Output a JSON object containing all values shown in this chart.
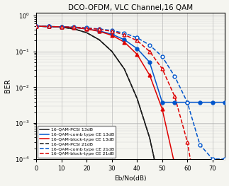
{
  "title": "DCO-OFDM, VLC Channel,16 QAM",
  "xlabel": "Eb/No(dB)",
  "ylabel": "BER",
  "xlim": [
    0,
    75
  ],
  "snr_points": [
    0,
    5,
    10,
    15,
    20,
    25,
    30,
    35,
    40,
    45,
    50,
    55,
    60,
    65,
    70,
    75
  ],
  "pcsi_13": [
    0.5,
    0.49,
    0.47,
    0.42,
    0.33,
    0.21,
    0.1,
    0.032,
    0.005,
    0.0004,
    1e-05,
    1e-06,
    1e-07,
    1e-07,
    1e-07,
    1e-07
  ],
  "comb_13": [
    0.5,
    0.49,
    0.48,
    0.46,
    0.42,
    0.37,
    0.3,
    0.21,
    0.12,
    0.05,
    0.0038,
    0.0038,
    0.0038,
    0.0038,
    0.0038,
    0.0038
  ],
  "block_13": [
    0.5,
    0.49,
    0.48,
    0.46,
    0.42,
    0.36,
    0.28,
    0.18,
    0.083,
    0.022,
    0.0025,
    7e-05,
    1e-07,
    1e-07,
    1e-07,
    1e-07
  ],
  "pcsi_21": [
    0.5,
    0.49,
    0.47,
    0.42,
    0.33,
    0.21,
    0.1,
    0.032,
    0.005,
    0.0004,
    1e-05,
    1e-06,
    1e-07,
    1e-07,
    1e-07,
    1e-07
  ],
  "comb_21": [
    0.5,
    0.49,
    0.48,
    0.47,
    0.45,
    0.42,
    0.38,
    0.32,
    0.24,
    0.15,
    0.072,
    0.02,
    0.0038,
    0.00025,
    0.0001,
    0.0001
  ],
  "block_21": [
    0.5,
    0.49,
    0.48,
    0.47,
    0.44,
    0.41,
    0.36,
    0.29,
    0.2,
    0.1,
    0.033,
    0.0055,
    0.0003,
    3e-06,
    1e-07,
    1e-07
  ],
  "color_black": "#1a1a1a",
  "color_blue": "#0055cc",
  "color_red": "#dd0000",
  "bg_color": "#f5f5f0"
}
